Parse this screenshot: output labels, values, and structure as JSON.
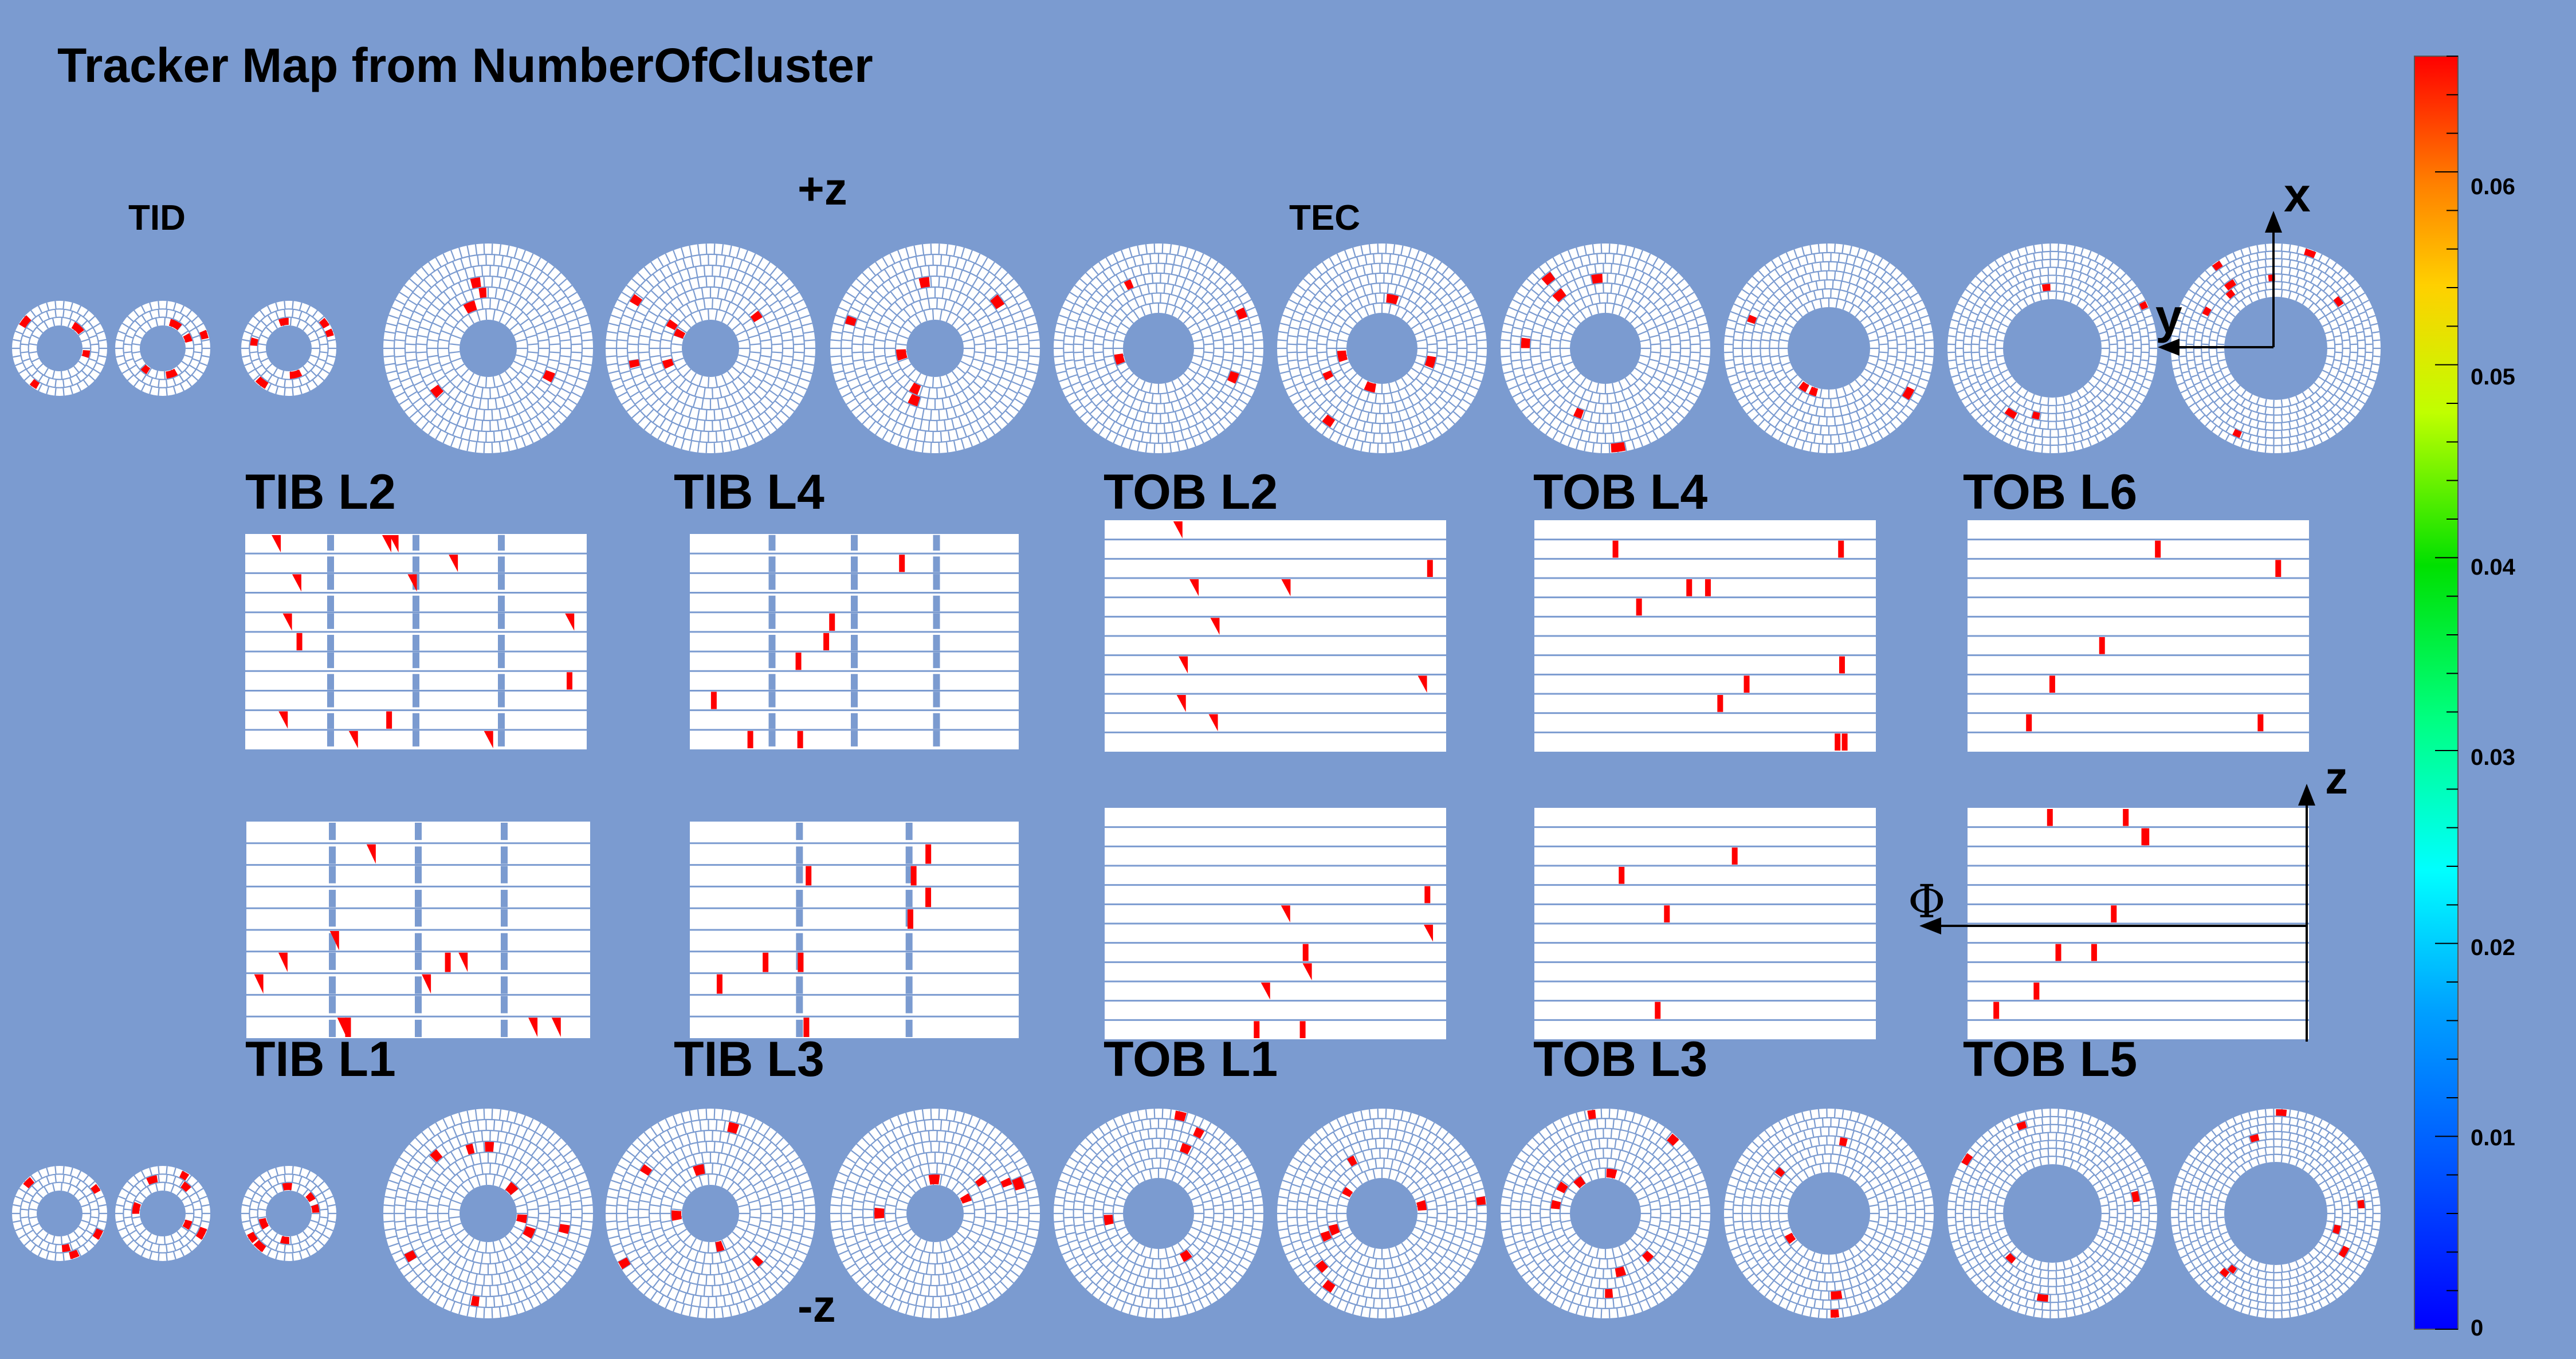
{
  "title": "Tracker Map from  NumberOfCluster",
  "labels": {
    "tid": "TID",
    "tec": "TEC",
    "plus_z": "+z",
    "minus_z": "-z",
    "axis_x": "x",
    "axis_y": "y",
    "axis_z": "z",
    "axis_phi": "Φ"
  },
  "barrel_layers": {
    "top_row": [
      "TIB L2",
      "TIB L4",
      "TOB L2",
      "TOB L4",
      "TOB L6"
    ],
    "bottom_row": [
      "TIB L1",
      "TIB L3",
      "TOB L1",
      "TOB L3",
      "TOB L5"
    ]
  },
  "color_scale": {
    "ticks": [
      "0",
      "0.01",
      "0.02",
      "0.03",
      "0.04",
      "0.05",
      "0.06"
    ],
    "min": 0,
    "max": 0.066,
    "colors": [
      "#0000ff",
      "#00a0ff",
      "#00ffff",
      "#00ff80",
      "#00e000",
      "#c0ff00",
      "#ffd000",
      "#ff8000",
      "#ff0000"
    ]
  },
  "colors": {
    "background": "#7b9bd0",
    "module": "#ffffff",
    "grid": "#7b9bd0",
    "hit": "#ff0000"
  }
}
